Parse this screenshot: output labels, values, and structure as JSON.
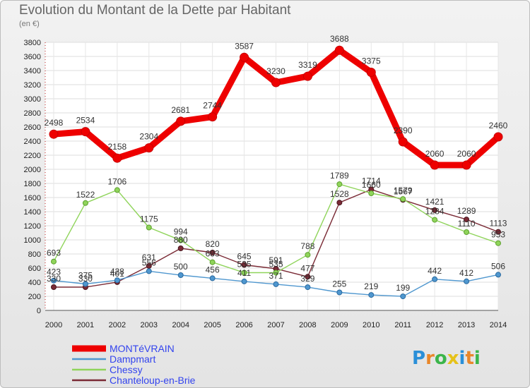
{
  "chart_data": {
    "type": "line",
    "title": "Evolution du Montant de la Dette par Habitant",
    "subtitle": "(en €)",
    "x": [
      "2000",
      "2001",
      "2002",
      "2003",
      "2004",
      "2005",
      "2006",
      "2007",
      "2008",
      "2009",
      "2010",
      "2011",
      "2012",
      "2013",
      "2014"
    ],
    "ylim": [
      0,
      3800
    ],
    "yticks": [
      0,
      200,
      400,
      600,
      800,
      1000,
      1200,
      1400,
      1600,
      1800,
      2000,
      2200,
      2400,
      2600,
      2800,
      3000,
      3200,
      3400,
      3600,
      3800
    ],
    "grid": true,
    "legend_position": "bottom-left",
    "series": [
      {
        "name": "MONTéVRAIN",
        "color": "#ee0000",
        "values": [
          2498,
          2534,
          2158,
          2304,
          2681,
          2744,
          3587,
          3230,
          3319,
          3688,
          3375,
          2390,
          2060,
          2060,
          2460
        ]
      },
      {
        "name": "Dampmart",
        "color": "#4f97cf",
        "values": [
          423,
          375,
          428,
          556,
          500,
          456,
          411,
          371,
          329,
          255,
          219,
          199,
          442,
          412,
          506
        ]
      },
      {
        "name": "Chessy",
        "color": "#8fd45a",
        "values": [
          693,
          1522,
          1706,
          1175,
          994,
          683,
          535,
          535,
          788,
          1789,
          1660,
          1579,
          1284,
          1110,
          953
        ]
      },
      {
        "name": "Chanteloup-en-Brie",
        "color": "#7a2a35",
        "values": [
          330,
          330,
          401,
          631,
          880,
          820,
          645,
          591,
          477,
          1528,
          1714,
          1567,
          1421,
          1289,
          1113
        ]
      }
    ]
  },
  "logo": {
    "text": "Proxiti",
    "letters": [
      "P",
      "r",
      "o",
      "x",
      "i",
      "t",
      "i"
    ],
    "colors": [
      "#2a8fd8",
      "#e9872a",
      "#3bb54a",
      "#e6c21a",
      "#2a8fd8",
      "#e9872a",
      "#3bb54a"
    ]
  }
}
